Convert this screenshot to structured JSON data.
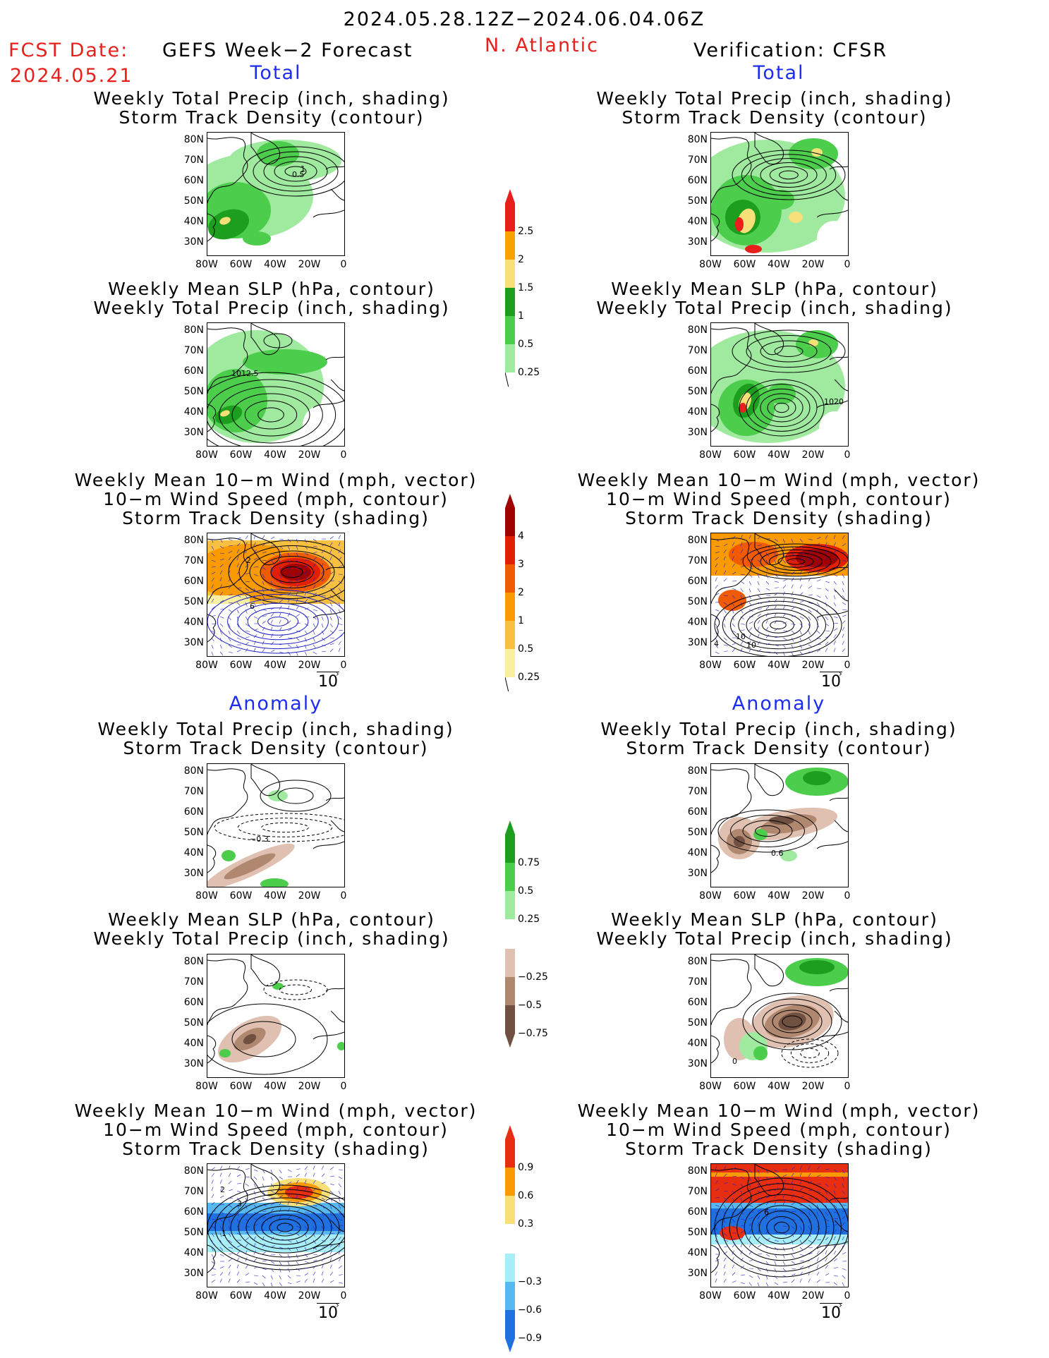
{
  "header": {
    "date_range": "2024.05.28.12Z−2024.06.04.06Z",
    "fcst_label": "FCST Date:",
    "fcst_date": "2024.05.21",
    "model_title": "GEFS Week−2 Forecast",
    "region": "N. Atlantic",
    "verification": "Verification: CFSR"
  },
  "sections": {
    "total": "Total",
    "anomaly": "Anomaly"
  },
  "titles": {
    "precip_track": [
      "Weekly Total Precip (inch, shading)",
      "Storm Track Density (contour)"
    ],
    "slp_precip": [
      "Weekly Mean SLP (hPa, contour)",
      "Weekly Total Precip (inch, shading)"
    ],
    "wind": [
      "Weekly Mean 10−m Wind (mph, vector)",
      "10−m Wind Speed (mph, contour)",
      "Storm Track Density (shading)"
    ]
  },
  "axes": {
    "lat_labels": [
      "80N",
      "70N",
      "60N",
      "50N",
      "40N",
      "30N"
    ],
    "lon_labels": [
      "80W",
      "60W",
      "40W",
      "20W",
      "0"
    ]
  },
  "vector_ref": "10",
  "panel_labels": {
    "fc_precip_track": "0.5",
    "fc_precip_track_b": "1",
    "fc_slp": "1012.5",
    "ver_slp": "1020",
    "fc_wind_a": "2",
    "fc_wind_b": "6",
    "ver_wind_a": "10",
    "ver_wind_b": "10",
    "ver_wind_c": "4",
    "anom_fc_track": "−0.3",
    "anom_ver_track": "0.6",
    "anom_fc_wind_a": "2",
    "anom_fc_wind_b": "1",
    "anom_fc_wind_c": "3",
    "anom_ver_wind": "6",
    "anom_ver_slp": "0"
  },
  "colorbars": {
    "precip_total": [
      "2.5",
      "2",
      "1.5",
      "1",
      "0.5",
      "0.25"
    ],
    "track_total": [
      "4",
      "3",
      "2",
      "1",
      "0.5",
      "0.25"
    ],
    "precip_anom": [
      "0.75",
      "0.5",
      "0.25",
      "−0.25",
      "−0.5",
      "−0.75"
    ],
    "track_anom": [
      "0.9",
      "0.6",
      "0.3",
      "−0.3",
      "−0.6",
      "−0.9"
    ]
  },
  "colors": {
    "precip_total": [
      "#e8201c",
      "#f8a200",
      "#f8e078",
      "#1e9e1e",
      "#4ccd4c",
      "#a0eaa0"
    ],
    "track_total": [
      "#a00000",
      "#e02000",
      "#f05a00",
      "#f89a00",
      "#f8c040",
      "#f8f0a0"
    ],
    "precip_anom": [
      "#1e9e1e",
      "#4ccd4c",
      "#a0eaa0",
      "#e0c0b0",
      "#b08870",
      "#705040"
    ],
    "track_anom": [
      "#e82e10",
      "#f89a00",
      "#f8e078",
      "#a8eef8",
      "#58b8f0",
      "#2070e0"
    ]
  }
}
